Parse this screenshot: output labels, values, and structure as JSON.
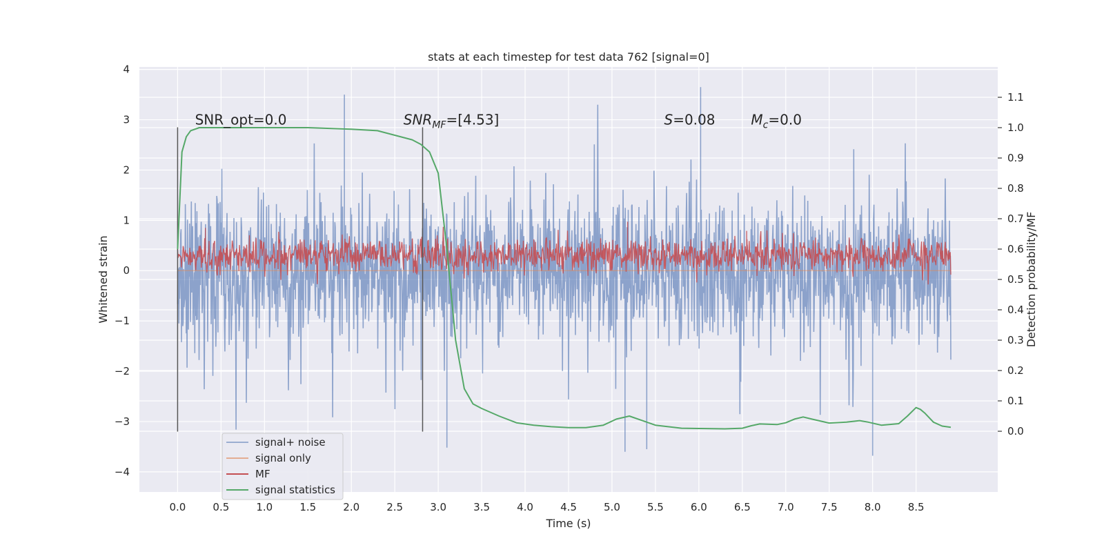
{
  "chart_data": {
    "type": "line",
    "title": "stats at each timestep for test data 762 [signal=0]",
    "xlabel": "Time (s)",
    "ylabel_left": "Whitened strain",
    "ylabel_right": "Detection probability/MF",
    "xlim": [
      -0.44,
      9.44
    ],
    "ylim_left": [
      -4.4,
      4.05
    ],
    "ylim_right": [
      -0.2,
      1.2
    ],
    "x_ticks": [
      0.0,
      0.5,
      1.0,
      1.5,
      2.0,
      2.5,
      3.0,
      3.5,
      4.0,
      4.5,
      5.0,
      5.5,
      6.0,
      6.5,
      7.0,
      7.5,
      8.0,
      8.5
    ],
    "x_tick_labels": [
      "0.0",
      "0.5",
      "1.0",
      "1.5",
      "2.0",
      "2.5",
      "3.0",
      "3.5",
      "4.0",
      "4.5",
      "5.0",
      "5.5",
      "6.0",
      "6.5",
      "7.0",
      "7.5",
      "8.0",
      "8.5"
    ],
    "y_left_ticks": [
      4,
      3,
      2,
      1,
      0,
      -1,
      -2,
      -3,
      -4
    ],
    "y_left_tick_labels": [
      "4",
      "3",
      "2",
      "1",
      "0",
      "−1",
      "−2",
      "−3",
      "−4"
    ],
    "y_right_ticks": [
      1.1,
      1.0,
      0.9,
      0.8,
      0.7,
      0.6,
      0.5,
      0.4,
      0.3,
      0.2,
      0.1,
      0.0
    ],
    "y_right_tick_labels": [
      "1.1",
      "1.0",
      "0.9",
      "0.8",
      "0.7",
      "0.6",
      "0.5",
      "0.4",
      "0.3",
      "0.2",
      "0.1",
      "0.0"
    ],
    "vertical_markers": [
      {
        "x": 0.0,
        "y_from": -3.2,
        "y_to": 2.85
      },
      {
        "x": 2.82,
        "y_from": -3.2,
        "y_to": 2.85
      }
    ],
    "annotations": [
      {
        "text": "SNR_opt=0.0",
        "x": 0.2,
        "y": 3.0
      },
      {
        "text": "=[4.53]",
        "x": 2.6,
        "y": 3.0,
        "math_prefix": "SNR",
        "math_sub": "MF"
      },
      {
        "text": "=0.08",
        "x": 5.6,
        "y": 3.0,
        "math_prefix": "S",
        "math_sub": ""
      },
      {
        "text": "=0.0",
        "x": 6.6,
        "y": 3.0,
        "math_prefix": "M",
        "math_sub": "c"
      }
    ],
    "series": [
      {
        "name": "signal+ noise",
        "axis": "left",
        "color": "#4c72b0",
        "opacity": 0.5,
        "description": "whitened noise trace, roughly ±1.6 typical with spikes to ±3.6 over 0–8.9 s",
        "amplitude_typical": 1.6,
        "peaks": [
          {
            "x": 1.92,
            "y": 3.5
          },
          {
            "x": 6.02,
            "y": 3.65
          },
          {
            "x": 3.1,
            "y": -3.52
          },
          {
            "x": 8.0,
            "y": -3.68
          },
          {
            "x": 5.15,
            "y": -3.6
          },
          {
            "x": 5.4,
            "y": -3.55
          }
        ]
      },
      {
        "name": "signal only",
        "axis": "left",
        "color": "#dd8452",
        "opacity": 0.5,
        "x": [
          0.0,
          8.9
        ],
        "y": [
          0.0,
          0.0
        ]
      },
      {
        "name": "MF",
        "axis": "right",
        "color": "#c44e52",
        "opacity": 0.9,
        "description": "matched-filter output fluctuating between about 0.53 and 0.63 on the right axis",
        "band": [
          0.53,
          0.63
        ],
        "peaks": [
          {
            "x": 5.18,
            "y": 0.69
          },
          {
            "x": 0.32,
            "y": 0.67
          },
          {
            "x": 6.55,
            "y": 0.66
          }
        ]
      },
      {
        "name": "signal statistics",
        "axis": "right",
        "color": "#55a868",
        "opacity": 1.0,
        "x": [
          0.0,
          0.05,
          0.1,
          0.15,
          0.25,
          0.5,
          1.0,
          1.5,
          2.0,
          2.3,
          2.5,
          2.7,
          2.8,
          2.9,
          3.0,
          3.1,
          3.2,
          3.3,
          3.4,
          3.5,
          3.7,
          3.9,
          4.1,
          4.3,
          4.5,
          4.7,
          4.9,
          5.05,
          5.2,
          5.35,
          5.5,
          5.8,
          6.0,
          6.3,
          6.5,
          6.6,
          6.7,
          6.9,
          7.0,
          7.1,
          7.2,
          7.3,
          7.5,
          7.7,
          7.85,
          7.95,
          8.1,
          8.3,
          8.4,
          8.5,
          8.55,
          8.6,
          8.7,
          8.8,
          8.9
        ],
        "y": [
          0.6,
          0.92,
          0.97,
          0.99,
          1.0,
          1.0,
          1.0,
          1.0,
          0.995,
          0.99,
          0.975,
          0.96,
          0.945,
          0.92,
          0.85,
          0.6,
          0.3,
          0.14,
          0.09,
          0.075,
          0.05,
          0.028,
          0.02,
          0.015,
          0.012,
          0.012,
          0.02,
          0.04,
          0.05,
          0.035,
          0.02,
          0.01,
          0.009,
          0.008,
          0.01,
          0.018,
          0.024,
          0.022,
          0.028,
          0.04,
          0.047,
          0.04,
          0.027,
          0.03,
          0.035,
          0.03,
          0.02,
          0.025,
          0.05,
          0.078,
          0.072,
          0.06,
          0.03,
          0.017,
          0.013
        ]
      }
    ],
    "legend": {
      "placement": "lower-left",
      "entries": [
        "signal+ noise",
        "signal only",
        "MF",
        "signal statistics"
      ]
    },
    "grid": true,
    "background": "#eaeaf2"
  }
}
